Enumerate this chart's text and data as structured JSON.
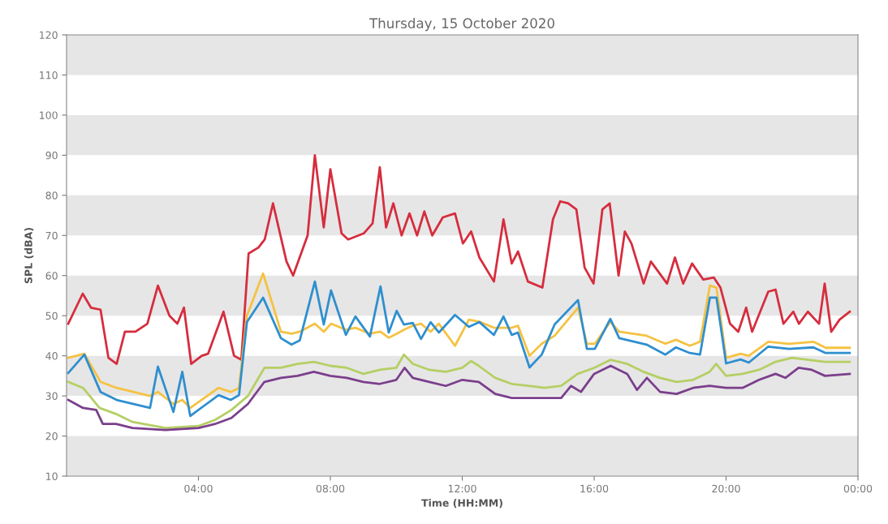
{
  "chart_data": {
    "type": "line",
    "title": "Thursday, 15 October 2020",
    "xlabel": "Time (HH:MM)",
    "ylabel": "SPL (dBA)",
    "xlim": [
      0,
      24
    ],
    "ylim": [
      10,
      120
    ],
    "xticks": [
      {
        "value": 4,
        "label": "04:00"
      },
      {
        "value": 8,
        "label": "08:00"
      },
      {
        "value": 12,
        "label": "12:00"
      },
      {
        "value": 16,
        "label": "16:00"
      },
      {
        "value": 20,
        "label": "20:00"
      },
      {
        "value": 24,
        "label": "00:00"
      }
    ],
    "yticks": [
      10,
      20,
      30,
      40,
      50,
      60,
      70,
      80,
      90,
      100,
      110,
      120
    ],
    "grid": false,
    "legend": false,
    "marker": "none",
    "line_style": "solid",
    "bands": [
      {
        "axis": "y",
        "from": 10,
        "to": 20,
        "color": "#e6e6e6"
      },
      {
        "axis": "y",
        "from": 30,
        "to": 40,
        "color": "#e6e6e6"
      },
      {
        "axis": "y",
        "from": 50,
        "to": 60,
        "color": "#e6e6e6"
      },
      {
        "axis": "y",
        "from": 70,
        "to": 80,
        "color": "#e6e6e6"
      },
      {
        "axis": "y",
        "from": 90,
        "to": 100,
        "color": "#e6e6e6"
      },
      {
        "axis": "y",
        "from": 110,
        "to": 120,
        "color": "#e6e6e6"
      }
    ],
    "series": [
      {
        "color": "#d62d3e",
        "x": [
          0.05,
          0.49,
          0.74,
          1.03,
          1.27,
          1.52,
          1.77,
          2.09,
          2.45,
          2.77,
          3.12,
          3.36,
          3.56,
          3.78,
          4.1,
          4.29,
          4.76,
          5.08,
          5.3,
          5.52,
          5.82,
          6.01,
          6.26,
          6.67,
          6.87,
          7.31,
          7.53,
          7.8,
          8.0,
          8.34,
          8.54,
          9.01,
          9.28,
          9.5,
          9.69,
          9.91,
          10.16,
          10.4,
          10.63,
          10.85,
          11.09,
          11.41,
          11.78,
          12.02,
          12.27,
          12.52,
          12.96,
          13.25,
          13.5,
          13.69,
          13.99,
          14.43,
          14.75,
          14.97,
          15.21,
          15.46,
          15.71,
          15.98,
          16.25,
          16.47,
          16.74,
          16.93,
          17.13,
          17.5,
          17.72,
          18.21,
          18.45,
          18.7,
          18.97,
          19.31,
          19.63,
          19.83,
          20.12,
          20.37,
          20.61,
          20.79,
          21.28,
          21.5,
          21.74,
          22.04,
          22.21,
          22.48,
          22.82,
          22.99,
          23.19,
          23.44,
          23.75
        ],
        "values": [
          48,
          55.5,
          52,
          51.5,
          39.5,
          38,
          46,
          46,
          48,
          57.5,
          50,
          48,
          52,
          38,
          40,
          40.5,
          51,
          40,
          39,
          65.5,
          67,
          69,
          78,
          63.5,
          60,
          70,
          90,
          72,
          86.5,
          70.5,
          69,
          70.5,
          73,
          87,
          72,
          78,
          70,
          75.5,
          70,
          76,
          70,
          74.5,
          75.5,
          68,
          71,
          64.5,
          58.5,
          74,
          63,
          66,
          58.5,
          57,
          74,
          78.5,
          78,
          76.5,
          62,
          58,
          76.5,
          78,
          60,
          71,
          68,
          58,
          63.5,
          58,
          64.5,
          58,
          63,
          59,
          59.5,
          57,
          48,
          46,
          52,
          46,
          56,
          56.5,
          48,
          51,
          48,
          51,
          48,
          58,
          46,
          49,
          51
        ]
      },
      {
        "color": "#f5c242",
        "x": [
          0.05,
          0.54,
          1.03,
          1.52,
          2.53,
          2.77,
          3.24,
          3.51,
          3.75,
          4.61,
          4.98,
          5.23,
          5.47,
          5.96,
          6.5,
          6.82,
          7.07,
          7.53,
          7.8,
          8.02,
          8.47,
          8.76,
          9.2,
          9.52,
          9.77,
          10.01,
          10.23,
          10.5,
          10.75,
          11.04,
          11.29,
          11.78,
          12.2,
          12.52,
          12.96,
          13.25,
          13.5,
          13.69,
          14.04,
          14.41,
          14.8,
          15.51,
          15.78,
          16.02,
          16.49,
          16.76,
          17.59,
          18.16,
          18.48,
          18.9,
          19.21,
          19.51,
          19.71,
          20.0,
          20.44,
          20.69,
          21.28,
          21.91,
          22.65,
          23.02,
          23.75
        ],
        "values": [
          39.5,
          40.5,
          33.5,
          32,
          30,
          31,
          28,
          29,
          27,
          32,
          31,
          32,
          50,
          60.5,
          46,
          45.5,
          46,
          48,
          46,
          48,
          46.5,
          47,
          45.5,
          46,
          44.5,
          45.5,
          46.5,
          47.5,
          48,
          46,
          48,
          42.5,
          49,
          48.5,
          47,
          47,
          47,
          47.5,
          40,
          43,
          45,
          52,
          43,
          43,
          48.5,
          46,
          45,
          43,
          44,
          42.5,
          43.5,
          57.5,
          57,
          39.5,
          40.5,
          40,
          43.5,
          43,
          43.5,
          42,
          42
        ]
      },
      {
        "color": "#2f8fcf",
        "x": [
          0.05,
          0.54,
          1.03,
          1.52,
          2.53,
          2.77,
          3.24,
          3.51,
          3.75,
          4.61,
          4.98,
          5.23,
          5.47,
          5.96,
          6.5,
          6.82,
          7.07,
          7.53,
          7.8,
          8.02,
          8.47,
          8.76,
          9.2,
          9.52,
          9.77,
          10.01,
          10.23,
          10.5,
          10.75,
          11.04,
          11.29,
          11.78,
          12.2,
          12.52,
          12.96,
          13.25,
          13.5,
          13.69,
          14.04,
          14.41,
          14.8,
          15.51,
          15.78,
          16.02,
          16.49,
          16.76,
          17.59,
          18.16,
          18.48,
          18.9,
          19.21,
          19.51,
          19.71,
          20.0,
          20.44,
          20.69,
          21.28,
          21.91,
          22.65,
          23.02,
          23.75
        ],
        "values": [
          35.7,
          40.3,
          31,
          29,
          27,
          37.3,
          26,
          36,
          25,
          30.2,
          29,
          30.2,
          48.4,
          54.5,
          44.4,
          42.8,
          43.8,
          58.5,
          47.8,
          56.3,
          45.2,
          49.8,
          44.8,
          57.3,
          45.8,
          51.2,
          47.8,
          48.2,
          44.2,
          48.4,
          45.8,
          50.2,
          47.2,
          48.4,
          45.2,
          49.8,
          45.2,
          45.8,
          37.1,
          40.3,
          47.8,
          53.9,
          41.7,
          41.7,
          49.2,
          44.4,
          42.8,
          40.3,
          42.1,
          40.7,
          40.3,
          54.5,
          54.5,
          38.1,
          39.1,
          38.3,
          42.3,
          41.7,
          42.1,
          40.7,
          40.7
        ]
      },
      {
        "color": "#b5cf63",
        "x": [
          0.05,
          0.5,
          1,
          1.5,
          2,
          3,
          4,
          4.5,
          5,
          5.5,
          6,
          6.5,
          7,
          7.5,
          8,
          8.5,
          9,
          9.5,
          10,
          10.23,
          10.5,
          11,
          11.5,
          12,
          12.27,
          12.5,
          13,
          13.5,
          14,
          14.5,
          15,
          15.5,
          16,
          16.5,
          17,
          17.5,
          18,
          18.5,
          19,
          19.5,
          19.7,
          20,
          20.5,
          21,
          21.5,
          22,
          22.5,
          23,
          23.75
        ],
        "values": [
          33.5,
          32,
          27,
          25.5,
          23.5,
          22,
          22.5,
          24,
          26.5,
          30,
          37,
          37,
          38,
          38.5,
          37.5,
          37,
          35.5,
          36.5,
          37,
          40.3,
          38,
          36.5,
          36,
          37,
          38.7,
          37.5,
          34.5,
          33,
          32.5,
          32,
          32.5,
          35.5,
          37,
          39,
          38,
          36,
          34.5,
          33.5,
          34,
          36,
          38,
          35,
          35.5,
          36.5,
          38.5,
          39.5,
          39,
          38.5,
          38.5
        ]
      },
      {
        "color": "#7b3f8c",
        "x": [
          0.05,
          0.5,
          0.9,
          1.1,
          1.5,
          2,
          3,
          4,
          4.5,
          5,
          5.5,
          6,
          6.5,
          7,
          7.5,
          8,
          8.5,
          9,
          9.5,
          10,
          10.25,
          10.5,
          11,
          11.5,
          12,
          12.5,
          13,
          13.5,
          14,
          14.5,
          15,
          15.3,
          15.6,
          16,
          16.5,
          17,
          17.3,
          17.6,
          18,
          18.5,
          19,
          19.5,
          20,
          20.5,
          21,
          21.5,
          21.8,
          22.2,
          22.6,
          23,
          23.75
        ],
        "values": [
          29,
          27,
          26.5,
          23,
          23,
          22,
          21.5,
          22,
          23,
          24.5,
          28,
          33.5,
          34.5,
          35,
          36,
          35,
          34.5,
          33.5,
          33,
          34,
          37,
          34.5,
          33.5,
          32.5,
          34,
          33.5,
          30.5,
          29.5,
          29.5,
          29.5,
          29.5,
          32.5,
          31,
          35.5,
          37.5,
          35.5,
          31.5,
          34.5,
          31,
          30.5,
          32,
          32.5,
          32,
          32,
          34,
          35.5,
          34.5,
          37,
          36.5,
          35,
          35.5
        ]
      }
    ]
  }
}
